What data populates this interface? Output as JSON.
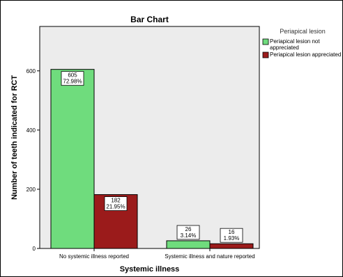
{
  "chart_data": {
    "type": "bar",
    "title": "Bar Chart",
    "xlabel": "Systemic illness",
    "ylabel": "Number of teeth indicated for RCT",
    "ylim": [
      0,
      750
    ],
    "yticks": [
      0,
      200,
      400,
      600
    ],
    "categories": [
      "No systemic illness reported",
      "Systemic illness and nature reported"
    ],
    "legend_title": "Periapical lesion",
    "legend_position": "right",
    "series": [
      {
        "name": "Periapical lesion not appreciated",
        "name_lines": [
          "Periapical lesion not",
          "appreciated"
        ],
        "color": "#6fdc7d",
        "values": [
          605,
          26
        ],
        "percents": [
          "72.98%",
          "3.14%"
        ]
      },
      {
        "name": "Periapical lesion appreciated",
        "name_lines": [
          "Periapical lesion appreciated"
        ],
        "color": "#9b1b1b",
        "values": [
          182,
          16
        ],
        "percents": [
          "21.95%",
          "1.93%"
        ]
      }
    ]
  }
}
